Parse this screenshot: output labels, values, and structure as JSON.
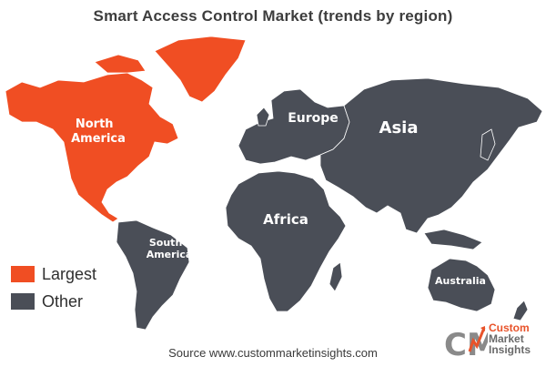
{
  "title": "Smart Access Control Market (trends by region)",
  "regions": [
    {
      "id": "north-america",
      "label_lines": [
        "North",
        "America"
      ],
      "category": "Largest"
    },
    {
      "id": "europe",
      "label_lines": [
        "Europe"
      ],
      "category": "Other"
    },
    {
      "id": "asia",
      "label_lines": [
        "Asia"
      ],
      "category": "Other"
    },
    {
      "id": "africa",
      "label_lines": [
        "Africa"
      ],
      "category": "Other"
    },
    {
      "id": "south-america",
      "label_lines": [
        "South",
        "America"
      ],
      "category": "Other"
    },
    {
      "id": "australia",
      "label_lines": [
        "Australia"
      ],
      "category": "Other"
    }
  ],
  "legend": [
    {
      "label": "Largest",
      "color": "#f04e23"
    },
    {
      "label": "Other",
      "color": "#4a4e57"
    }
  ],
  "source": "Source www.custommarketinsights.com",
  "logo": {
    "initials": "CMI",
    "lines": [
      "Custom",
      "Market",
      "Insights"
    ],
    "accent_color": "#e8532a",
    "icon": "bar-chart-arrow-icon"
  }
}
